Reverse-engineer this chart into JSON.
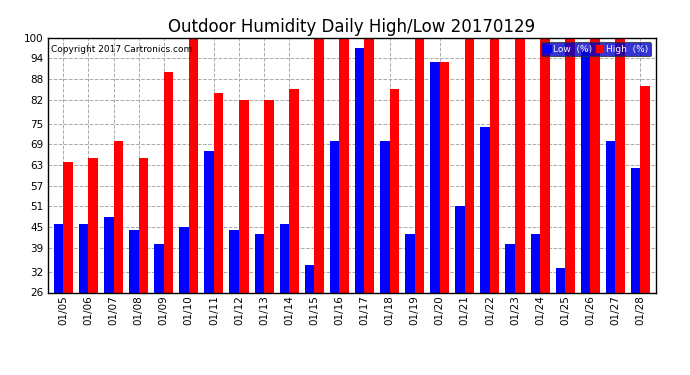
{
  "title": "Outdoor Humidity Daily High/Low 20170129",
  "copyright": "Copyright 2017 Cartronics.com",
  "dates": [
    "01/05",
    "01/06",
    "01/07",
    "01/08",
    "01/09",
    "01/10",
    "01/11",
    "01/12",
    "01/13",
    "01/14",
    "01/15",
    "01/16",
    "01/17",
    "01/18",
    "01/19",
    "01/20",
    "01/21",
    "01/22",
    "01/23",
    "01/24",
    "01/25",
    "01/26",
    "01/27",
    "01/28"
  ],
  "high": [
    64,
    65,
    70,
    65,
    90,
    100,
    84,
    82,
    82,
    85,
    100,
    100,
    100,
    85,
    100,
    93,
    100,
    100,
    100,
    100,
    100,
    100,
    100,
    86
  ],
  "low": [
    46,
    46,
    48,
    44,
    40,
    45,
    67,
    44,
    43,
    46,
    34,
    70,
    97,
    70,
    43,
    93,
    51,
    74,
    40,
    43,
    33,
    96,
    70,
    62
  ],
  "ylim_min": 26,
  "ylim_max": 100,
  "yticks": [
    26,
    32,
    39,
    45,
    51,
    57,
    63,
    69,
    75,
    82,
    88,
    94,
    100
  ],
  "bar_width": 0.38,
  "high_color": "#ff0000",
  "low_color": "#0000ff",
  "bg_color": "#ffffff",
  "grid_color": "#aaaaaa",
  "title_fontsize": 12,
  "tick_fontsize": 7.5,
  "legend_labels": [
    "Low  (%)",
    "High  (%)"
  ]
}
